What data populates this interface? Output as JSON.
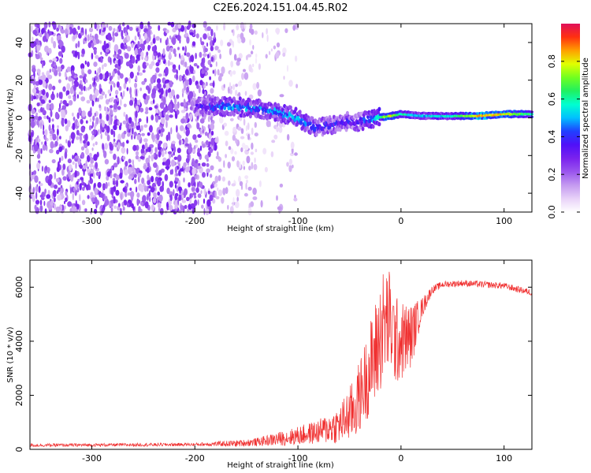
{
  "title": "C2E6.2024.151.04.45.R02",
  "chart_data": [
    {
      "type": "heatmap",
      "xlabel": "Height of straight line (km)",
      "ylabel": "Frequency (Hz)",
      "xlim": [
        -360,
        127
      ],
      "ylim": [
        -50,
        50
      ],
      "x_ticks": [
        -300,
        -200,
        -100,
        0,
        100
      ],
      "y_ticks": [
        -40,
        -20,
        0,
        20,
        40
      ],
      "colorbar": {
        "label": "Normalized spectral amplitude",
        "range": [
          0,
          1
        ],
        "ticks": [
          0.0,
          0.2,
          0.4,
          0.6,
          0.8
        ],
        "colormap": [
          "#ffffff",
          "#e8d2f8",
          "#c49af0",
          "#9a55ee",
          "#7a22ee",
          "#5010f8",
          "#2040ff",
          "#00c0ff",
          "#00ffd0",
          "#20f060",
          "#70ff20",
          "#e0ff00",
          "#ffa000",
          "#ff3010",
          "#e0105a"
        ]
      },
      "noise_region_x": [
        -360,
        -140
      ],
      "ridge": [
        {
          "x": -200,
          "f": 6,
          "amp": 0.3
        },
        {
          "x": -180,
          "f": 6,
          "amp": 0.4
        },
        {
          "x": -160,
          "f": 6,
          "amp": 0.45
        },
        {
          "x": -140,
          "f": 5,
          "amp": 0.45
        },
        {
          "x": -120,
          "f": 3,
          "amp": 0.45
        },
        {
          "x": -100,
          "f": 0,
          "amp": 0.45
        },
        {
          "x": -85,
          "f": -5,
          "amp": 0.4
        },
        {
          "x": -70,
          "f": -4,
          "amp": 0.35
        },
        {
          "x": -55,
          "f": -2,
          "amp": 0.35
        },
        {
          "x": -40,
          "f": -2,
          "amp": 0.35
        },
        {
          "x": -25,
          "f": 0,
          "amp": 0.5
        },
        {
          "x": -10,
          "f": 1,
          "amp": 0.8
        },
        {
          "x": 0,
          "f": 2,
          "amp": 0.6
        },
        {
          "x": 20,
          "f": 1,
          "amp": 0.5
        },
        {
          "x": 50,
          "f": 1,
          "amp": 0.55
        },
        {
          "x": 75,
          "f": 1,
          "amp": 0.85
        },
        {
          "x": 100,
          "f": 2,
          "amp": 0.8
        },
        {
          "x": 127,
          "f": 2,
          "amp": 0.6
        }
      ]
    },
    {
      "type": "line",
      "xlabel": "Height of straight line (km)",
      "ylabel": "SNR (10 * v/v)",
      "xlim": [
        -360,
        127
      ],
      "ylim": [
        0,
        7000
      ],
      "x_ticks": [
        -300,
        -200,
        -100,
        0,
        100
      ],
      "y_ticks": [
        0,
        2000,
        4000,
        6000
      ],
      "color": "#f03030",
      "series": [
        {
          "x": [
            -360,
            -300,
            -250,
            -200,
            -160,
            -140,
            -120,
            -100,
            -80,
            -60,
            -45,
            -35,
            -25,
            -18,
            -12,
            -5,
            0,
            10,
            20,
            30,
            40,
            60,
            80,
            100,
            110,
            127
          ],
          "mean": [
            150,
            160,
            170,
            180,
            220,
            270,
            380,
            500,
            650,
            900,
            1500,
            2500,
            3500,
            4500,
            4800,
            4000,
            4000,
            4200,
            5200,
            5900,
            6100,
            6150,
            6100,
            6050,
            5950,
            5800
          ],
          "noise": [
            60,
            60,
            60,
            60,
            120,
            150,
            250,
            350,
            450,
            700,
            1200,
            1500,
            2000,
            2200,
            2000,
            1700,
            1500,
            1200,
            400,
            150,
            120,
            120,
            120,
            120,
            120,
            120
          ]
        }
      ]
    }
  ]
}
